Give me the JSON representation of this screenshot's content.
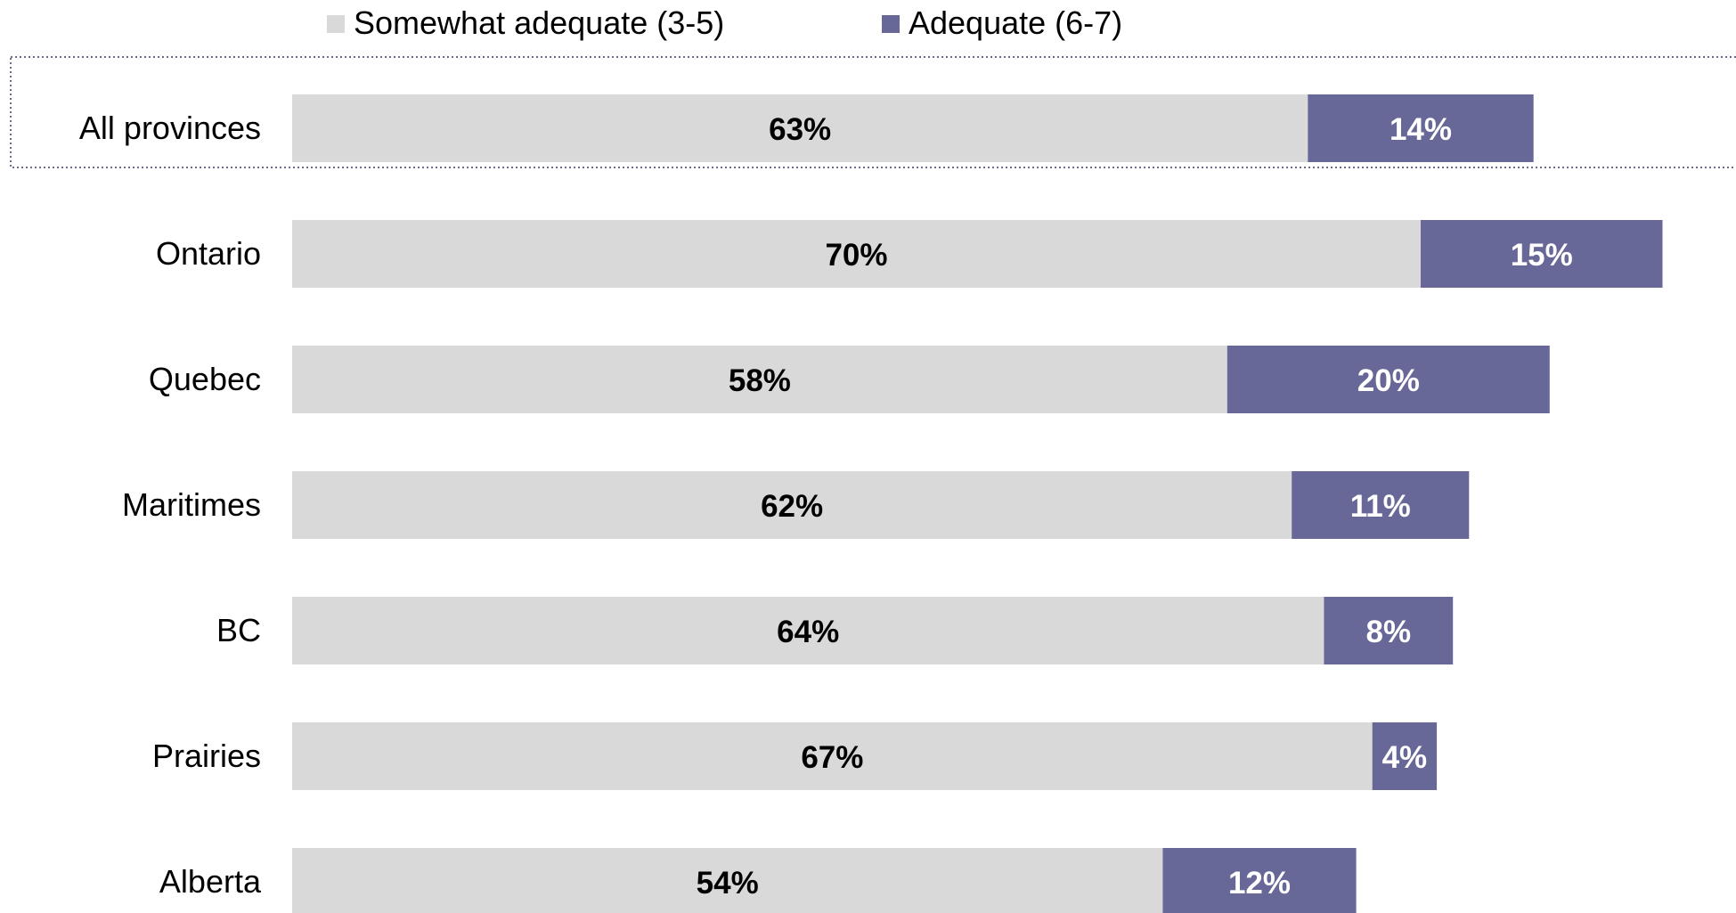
{
  "chart_data": {
    "type": "bar",
    "orientation": "horizontal",
    "stacked": true,
    "categories": [
      "All provinces",
      "Ontario",
      "Quebec",
      "Maritimes",
      "BC",
      "Prairies",
      "Alberta"
    ],
    "series": [
      {
        "name": "Somewhat adequate (3-5)",
        "color": "#d9d9d9",
        "label_color": "#000000",
        "values": [
          63,
          70,
          58,
          62,
          64,
          67,
          54
        ],
        "labels": [
          "63%",
          "70%",
          "58%",
          "62%",
          "64%",
          "67%",
          "54%"
        ]
      },
      {
        "name": "Adequate (6-7)",
        "color": "#686898",
        "label_color": "#ffffff",
        "values": [
          14,
          15,
          20,
          11,
          8,
          4,
          12
        ],
        "labels": [
          "14%",
          "15%",
          "20%",
          "11%",
          "8%",
          "4%",
          "12%"
        ]
      }
    ],
    "xlim": [
      0,
      100
    ],
    "grid": false,
    "legend_position": "top",
    "highlighted_category": "All provinces"
  }
}
